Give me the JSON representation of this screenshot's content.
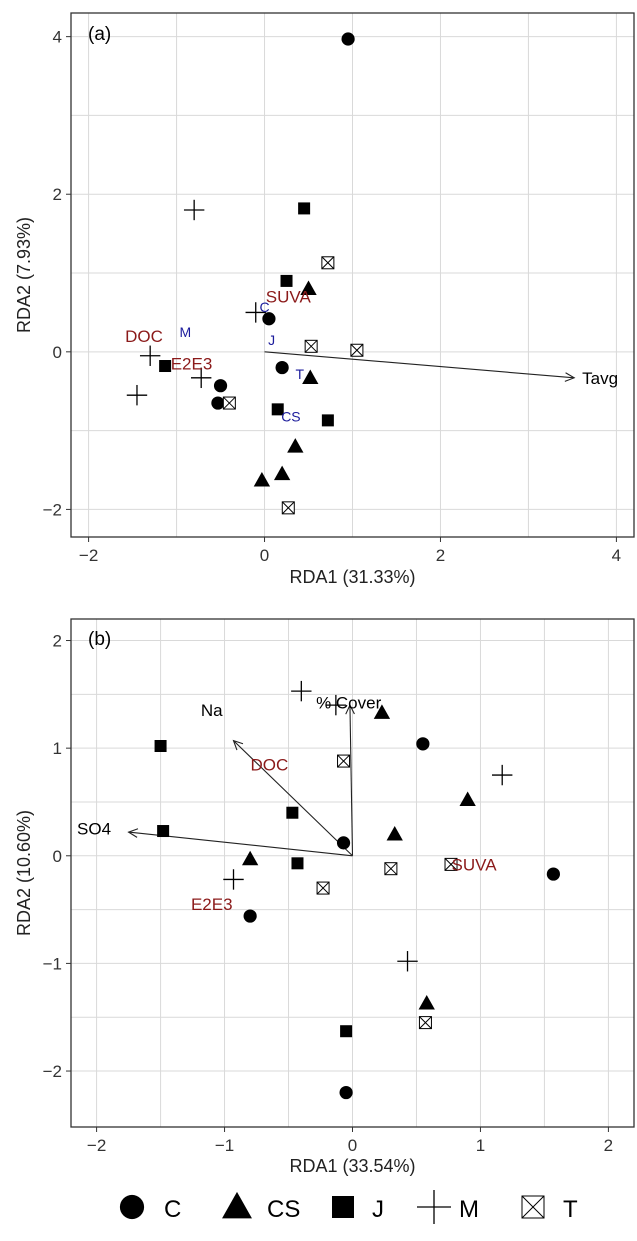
{
  "legend": {
    "items": [
      {
        "symbol": "circle",
        "label": "C"
      },
      {
        "symbol": "triangle",
        "label": "CS"
      },
      {
        "symbol": "square",
        "label": "J"
      },
      {
        "symbol": "plus",
        "label": "M"
      },
      {
        "symbol": "boxcross",
        "label": "T"
      }
    ]
  },
  "colors": {
    "response": "#8b1a1a",
    "site": "#1c1c9c",
    "grid": "#d9d9d9",
    "border": "#333333"
  },
  "chart_data": [
    {
      "type": "scatter",
      "panel": "(a)",
      "xlabel": "RDA1 (31.33%)",
      "ylabel": "RDA2 (7.93%)",
      "xlim": [
        -2.2,
        4.2
      ],
      "ylim": [
        -2.35,
        4.3
      ],
      "xticks": [
        -2,
        0,
        2,
        4
      ],
      "yticks": [
        -2,
        0,
        2,
        4
      ],
      "xtick_labels": [
        "−2",
        "0",
        "2",
        "4"
      ],
      "ytick_labels": [
        "−2",
        "0",
        "2",
        "4"
      ],
      "grid": true,
      "points": [
        {
          "group": "C",
          "x": 0.95,
          "y": 3.97
        },
        {
          "group": "C",
          "x": 0.05,
          "y": 0.42
        },
        {
          "group": "C",
          "x": 0.2,
          "y": -0.2
        },
        {
          "group": "C",
          "x": -0.5,
          "y": -0.43
        },
        {
          "group": "C",
          "x": -0.53,
          "y": -0.65
        },
        {
          "group": "CS",
          "x": 0.5,
          "y": 0.8
        },
        {
          "group": "CS",
          "x": 0.52,
          "y": -0.33
        },
        {
          "group": "CS",
          "x": 0.35,
          "y": -1.2
        },
        {
          "group": "CS",
          "x": 0.2,
          "y": -1.55
        },
        {
          "group": "CS",
          "x": -0.03,
          "y": -1.63
        },
        {
          "group": "J",
          "x": 0.45,
          "y": 1.82
        },
        {
          "group": "J",
          "x": 0.25,
          "y": 0.9
        },
        {
          "group": "J",
          "x": -1.13,
          "y": -0.18
        },
        {
          "group": "J",
          "x": 0.15,
          "y": -0.73
        },
        {
          "group": "J",
          "x": 0.72,
          "y": -0.87
        },
        {
          "group": "M",
          "x": -0.8,
          "y": 1.8
        },
        {
          "group": "M",
          "x": -0.1,
          "y": 0.5
        },
        {
          "group": "M",
          "x": -1.3,
          "y": -0.05
        },
        {
          "group": "M",
          "x": -0.72,
          "y": -0.33
        },
        {
          "group": "M",
          "x": -1.45,
          "y": -0.55
        },
        {
          "group": "T",
          "x": 0.72,
          "y": 1.13
        },
        {
          "group": "T",
          "x": 0.53,
          "y": 0.07
        },
        {
          "group": "T",
          "x": 1.05,
          "y": 0.02
        },
        {
          "group": "T",
          "x": -0.4,
          "y": -0.65
        },
        {
          "group": "T",
          "x": 0.27,
          "y": -1.98
        }
      ],
      "arrows": [
        {
          "label": "Tavg",
          "x": 3.52,
          "y": -0.33
        }
      ],
      "response_labels": [
        {
          "label": "SUVA",
          "x": 0.27,
          "y": 0.7
        },
        {
          "label": "DOC",
          "x": -1.37,
          "y": 0.2
        },
        {
          "label": "E2E3",
          "x": -0.83,
          "y": -0.15
        }
      ],
      "site_labels": [
        {
          "label": "C",
          "x": 0.0,
          "y": 0.57
        },
        {
          "label": "M",
          "x": -0.9,
          "y": 0.25
        },
        {
          "label": "J",
          "x": 0.08,
          "y": 0.15
        },
        {
          "label": "T",
          "x": 0.4,
          "y": -0.28
        },
        {
          "label": "CS",
          "x": 0.3,
          "y": -0.82
        }
      ]
    },
    {
      "type": "scatter",
      "panel": "(b)",
      "xlabel": "RDA1 (33.54%)",
      "ylabel": "RDA2 (10.60%)",
      "xlim": [
        -2.2,
        2.2
      ],
      "ylim": [
        -2.52,
        2.2
      ],
      "xticks": [
        -2,
        -1,
        0,
        1,
        2
      ],
      "yticks": [
        -2,
        -1,
        0,
        1,
        2
      ],
      "xtick_labels": [
        "−2",
        "−1",
        "0",
        "1",
        "2"
      ],
      "ytick_labels": [
        "−2",
        "−1",
        "0",
        "1",
        "2"
      ],
      "grid": true,
      "points": [
        {
          "group": "C",
          "x": 0.55,
          "y": 1.04
        },
        {
          "group": "C",
          "x": -0.07,
          "y": 0.12
        },
        {
          "group": "C",
          "x": 1.57,
          "y": -0.17
        },
        {
          "group": "C",
          "x": -0.8,
          "y": -0.56
        },
        {
          "group": "C",
          "x": -0.05,
          "y": -2.2
        },
        {
          "group": "CS",
          "x": 0.23,
          "y": 1.33
        },
        {
          "group": "CS",
          "x": 0.9,
          "y": 0.52
        },
        {
          "group": "CS",
          "x": 0.33,
          "y": 0.2
        },
        {
          "group": "CS",
          "x": -0.8,
          "y": -0.03
        },
        {
          "group": "CS",
          "x": 0.58,
          "y": -1.37
        },
        {
          "group": "J",
          "x": -1.5,
          "y": 1.02
        },
        {
          "group": "J",
          "x": -0.47,
          "y": 0.4
        },
        {
          "group": "J",
          "x": -1.48,
          "y": 0.23
        },
        {
          "group": "J",
          "x": -0.43,
          "y": -0.07
        },
        {
          "group": "J",
          "x": -0.05,
          "y": -1.63
        },
        {
          "group": "M",
          "x": -0.4,
          "y": 1.53
        },
        {
          "group": "M",
          "x": -0.13,
          "y": 1.4
        },
        {
          "group": "M",
          "x": 1.17,
          "y": 0.75
        },
        {
          "group": "M",
          "x": -0.93,
          "y": -0.22
        },
        {
          "group": "M",
          "x": 0.43,
          "y": -0.98
        },
        {
          "group": "T",
          "x": -0.07,
          "y": 0.88
        },
        {
          "group": "T",
          "x": 0.3,
          "y": -0.12
        },
        {
          "group": "T",
          "x": 0.77,
          "y": -0.08
        },
        {
          "group": "T",
          "x": -0.23,
          "y": -0.3
        },
        {
          "group": "T",
          "x": 0.57,
          "y": -1.55
        }
      ],
      "arrows": [
        {
          "label": "% Cover",
          "x": -0.02,
          "y": 1.4,
          "lx": -0.03,
          "ly": 1.37
        },
        {
          "label": "Na",
          "x": -0.93,
          "y": 1.07,
          "lx": -1.1,
          "ly": 1.3
        },
        {
          "label": "SO4",
          "x": -1.75,
          "y": 0.22,
          "lx": -2.02,
          "ly": 0.2
        }
      ],
      "response_labels": [
        {
          "label": "DOC",
          "x": -0.65,
          "y": 0.85
        },
        {
          "label": "SUVA",
          "x": 0.95,
          "y": -0.08
        },
        {
          "label": "E2E3",
          "x": -1.1,
          "y": -0.45
        }
      ]
    }
  ]
}
